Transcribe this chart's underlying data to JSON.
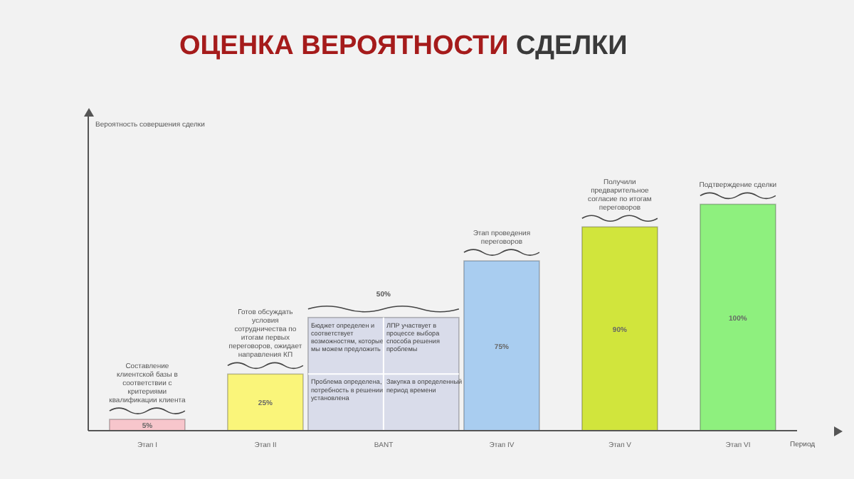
{
  "chart_data": {
    "type": "bar",
    "title": "ОЦЕНКА ВЕРОЯТНОСТИ СДЕЛКИ",
    "ylabel": "Вероятность совершения сделки",
    "xlabel": "Период",
    "categories": [
      "Этап I",
      "Этап II",
      "BANT",
      "Этап IV",
      "Этап V",
      "Этап VI"
    ],
    "values": [
      5,
      25,
      50,
      75,
      90,
      100
    ],
    "colors": [
      "#f7c6cc",
      "#faf57a",
      "#d9dcea",
      "#a9cdf0",
      "#d1e53c",
      "#8ef07e"
    ],
    "value_labels": [
      "5%",
      "25%",
      "50%",
      "75%",
      "90%",
      "100%"
    ],
    "ylim": [
      0,
      140
    ],
    "tick_labels": "x",
    "annotations": [
      {
        "text": "Составление клиентской базы в соответствии с критериями квалификации клиента",
        "x": "Этап I",
        "y": 5
      },
      {
        "text": "Готов обсуждать условия сотрудничества по итогам первых переговоров, ожидает направления КП",
        "x": "Этап II",
        "y": 25
      },
      "Бюджет определен и соответствует возможностям, которые мы можем предложить",
      "ЛПР участвует в процессе выбора способа решения проблемы",
      "Проблема определена, потребность в решении установлена",
      "Закупка в определенный период времени",
      {
        "text": "Этап проведения переговоров",
        "x": "Этап IV",
        "y": 75
      },
      {
        "text": "Получили предварительное согласие по итогам переговоров",
        "x": "Этап V",
        "y": 90
      },
      {
        "text": "Подтверждение сделки",
        "x": "Этап VI",
        "y": 100
      }
    ]
  }
}
